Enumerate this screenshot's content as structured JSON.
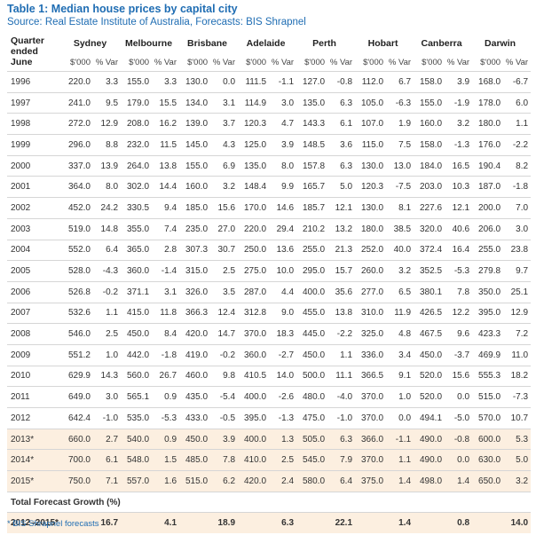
{
  "header": {
    "title": "Table 1: Median house prices by capital city",
    "source": "Source: Real Estate Institute of Australia, Forecasts: BIS Shrapnel"
  },
  "table": {
    "quarter_label": "Quarter ended June",
    "cities": [
      "Sydney",
      "Melbourne",
      "Brisbane",
      "Adelaide",
      "Perth",
      "Hobart",
      "Canberra",
      "Darwin"
    ],
    "units": [
      "$'000",
      "% Var"
    ],
    "history_rows": [
      [
        "1996",
        "220.0",
        "3.3",
        "155.0",
        "3.3",
        "130.0",
        "0.0",
        "111.5",
        "-1.1",
        "127.0",
        "-0.8",
        "112.0",
        "6.7",
        "158.0",
        "3.9",
        "168.0",
        "-6.7"
      ],
      [
        "1997",
        "241.0",
        "9.5",
        "179.0",
        "15.5",
        "134.0",
        "3.1",
        "114.9",
        "3.0",
        "135.0",
        "6.3",
        "105.0",
        "-6.3",
        "155.0",
        "-1.9",
        "178.0",
        "6.0"
      ],
      [
        "1998",
        "272.0",
        "12.9",
        "208.0",
        "16.2",
        "139.0",
        "3.7",
        "120.3",
        "4.7",
        "143.3",
        "6.1",
        "107.0",
        "1.9",
        "160.0",
        "3.2",
        "180.0",
        "1.1"
      ],
      [
        "1999",
        "296.0",
        "8.8",
        "232.0",
        "11.5",
        "145.0",
        "4.3",
        "125.0",
        "3.9",
        "148.5",
        "3.6",
        "115.0",
        "7.5",
        "158.0",
        "-1.3",
        "176.0",
        "-2.2"
      ],
      [
        "2000",
        "337.0",
        "13.9",
        "264.0",
        "13.8",
        "155.0",
        "6.9",
        "135.0",
        "8.0",
        "157.8",
        "6.3",
        "130.0",
        "13.0",
        "184.0",
        "16.5",
        "190.4",
        "8.2"
      ],
      [
        "2001",
        "364.0",
        "8.0",
        "302.0",
        "14.4",
        "160.0",
        "3.2",
        "148.4",
        "9.9",
        "165.7",
        "5.0",
        "120.3",
        "-7.5",
        "203.0",
        "10.3",
        "187.0",
        "-1.8"
      ],
      [
        "2002",
        "452.0",
        "24.2",
        "330.5",
        "9.4",
        "185.0",
        "15.6",
        "170.0",
        "14.6",
        "185.7",
        "12.1",
        "130.0",
        "8.1",
        "227.6",
        "12.1",
        "200.0",
        "7.0"
      ],
      [
        "2003",
        "519.0",
        "14.8",
        "355.0",
        "7.4",
        "235.0",
        "27.0",
        "220.0",
        "29.4",
        "210.2",
        "13.2",
        "180.0",
        "38.5",
        "320.0",
        "40.6",
        "206.0",
        "3.0"
      ],
      [
        "2004",
        "552.0",
        "6.4",
        "365.0",
        "2.8",
        "307.3",
        "30.7",
        "250.0",
        "13.6",
        "255.0",
        "21.3",
        "252.0",
        "40.0",
        "372.4",
        "16.4",
        "255.0",
        "23.8"
      ],
      [
        "2005",
        "528.0",
        "-4.3",
        "360.0",
        "-1.4",
        "315.0",
        "2.5",
        "275.0",
        "10.0",
        "295.0",
        "15.7",
        "260.0",
        "3.2",
        "352.5",
        "-5.3",
        "279.8",
        "9.7"
      ],
      [
        "2006",
        "526.8",
        "-0.2",
        "371.1",
        "3.1",
        "326.0",
        "3.5",
        "287.0",
        "4.4",
        "400.0",
        "35.6",
        "277.0",
        "6.5",
        "380.1",
        "7.8",
        "350.0",
        "25.1"
      ],
      [
        "2007",
        "532.6",
        "1.1",
        "415.0",
        "11.8",
        "366.3",
        "12.4",
        "312.8",
        "9.0",
        "455.0",
        "13.8",
        "310.0",
        "11.9",
        "426.5",
        "12.2",
        "395.0",
        "12.9"
      ],
      [
        "2008",
        "546.0",
        "2.5",
        "450.0",
        "8.4",
        "420.0",
        "14.7",
        "370.0",
        "18.3",
        "445.0",
        "-2.2",
        "325.0",
        "4.8",
        "467.5",
        "9.6",
        "423.3",
        "7.2"
      ],
      [
        "2009",
        "551.2",
        "1.0",
        "442.0",
        "-1.8",
        "419.0",
        "-0.2",
        "360.0",
        "-2.7",
        "450.0",
        "1.1",
        "336.0",
        "3.4",
        "450.0",
        "-3.7",
        "469.9",
        "11.0"
      ],
      [
        "2010",
        "629.9",
        "14.3",
        "560.0",
        "26.7",
        "460.0",
        "9.8",
        "410.5",
        "14.0",
        "500.0",
        "11.1",
        "366.5",
        "9.1",
        "520.0",
        "15.6",
        "555.3",
        "18.2"
      ],
      [
        "2011",
        "649.0",
        "3.0",
        "565.1",
        "0.9",
        "435.0",
        "-5.4",
        "400.0",
        "-2.6",
        "480.0",
        "-4.0",
        "370.0",
        "1.0",
        "520.0",
        "0.0",
        "515.0",
        "-7.3"
      ],
      [
        "2012",
        "642.4",
        "-1.0",
        "535.0",
        "-5.3",
        "433.0",
        "-0.5",
        "395.0",
        "-1.3",
        "475.0",
        "-1.0",
        "370.0",
        "0.0",
        "494.1",
        "-5.0",
        "570.0",
        "10.7"
      ]
    ],
    "forecast_rows": [
      [
        "2013*",
        "660.0",
        "2.7",
        "540.0",
        "0.9",
        "450.0",
        "3.9",
        "400.0",
        "1.3",
        "505.0",
        "6.3",
        "366.0",
        "-1.1",
        "490.0",
        "-0.8",
        "600.0",
        "5.3"
      ],
      [
        "2014*",
        "700.0",
        "6.1",
        "548.0",
        "1.5",
        "485.0",
        "7.8",
        "410.0",
        "2.5",
        "545.0",
        "7.9",
        "370.0",
        "1.1",
        "490.0",
        "0.0",
        "630.0",
        "5.0"
      ],
      [
        "2015*",
        "750.0",
        "7.1",
        "557.0",
        "1.6",
        "515.0",
        "6.2",
        "420.0",
        "2.4",
        "580.0",
        "6.4",
        "375.0",
        "1.4",
        "498.0",
        "1.4",
        "650.0",
        "3.2"
      ]
    ],
    "total_label": "Total Forecast Growth (%)",
    "total_row": {
      "label": "2012–2015*",
      "values": [
        "16.7",
        "4.1",
        "18.9",
        "6.3",
        "22.1",
        "1.4",
        "0.8",
        "14.0"
      ]
    }
  },
  "footnote": "* BIS Shrapnel forecasts"
}
